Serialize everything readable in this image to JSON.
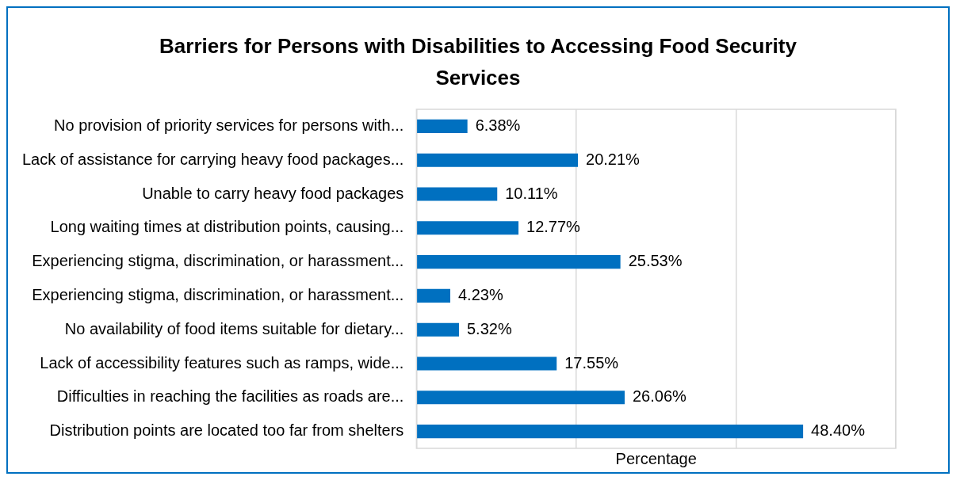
{
  "chart_data": {
    "type": "bar",
    "orientation": "horizontal",
    "title": "Barriers for Persons with Disabilities to Accessing Food Security Services",
    "xlabel": "Percentage",
    "categories": [
      "No provision of priority services for persons with...",
      "Lack of assistance for carrying heavy food packages...",
      "Unable to carry heavy food packages",
      "Long waiting times at distribution points, causing...",
      "Experiencing stigma, discrimination, or harassment...",
      "Experiencing stigma, discrimination, or harassment...",
      "No availability of food items suitable for dietary...",
      "Lack of accessibility features such as ramps, wide...",
      "Difficulties in reaching the facilities as roads are...",
      "Distribution points are located too far from shelters"
    ],
    "values": [
      6.38,
      20.21,
      10.11,
      12.77,
      25.53,
      4.23,
      5.32,
      17.55,
      26.06,
      48.4
    ],
    "value_labels": [
      "6.38%",
      "20.21%",
      "10.11%",
      "12.77%",
      "25.53%",
      "4.23%",
      "5.32%",
      "17.55%",
      "26.06%",
      "48.40%"
    ],
    "color": "#0070c0",
    "xlim": [
      0,
      60
    ],
    "xticks": [
      {
        "value": 0,
        "label": null
      },
      {
        "value": 20,
        "label": null
      },
      {
        "value": 40,
        "label": null
      },
      {
        "value": 60,
        "label": null
      }
    ],
    "grid": "x",
    "legend": false,
    "tick_labels": "y"
  }
}
